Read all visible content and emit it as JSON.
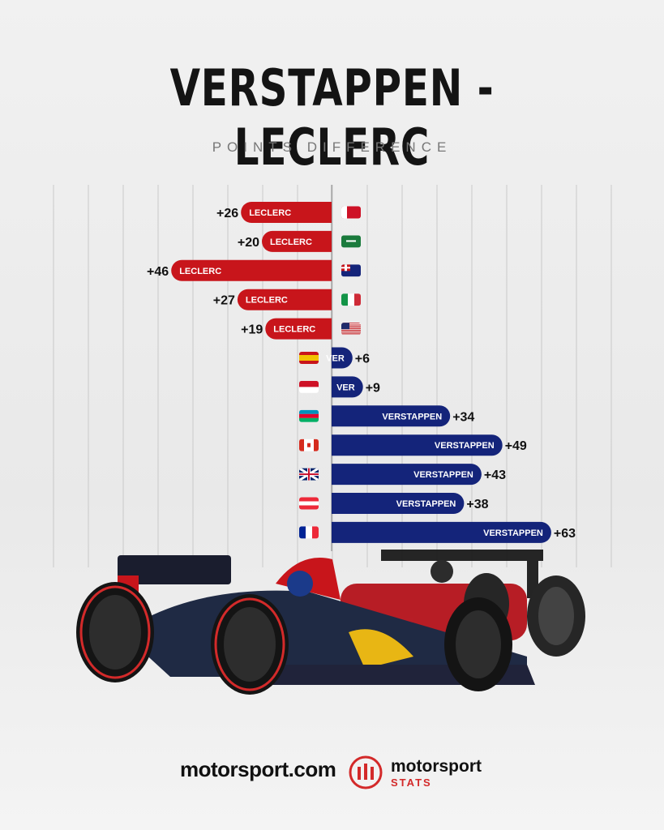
{
  "header": {
    "title": "VERSTAPPEN - LECLERC",
    "subtitle": "POINTS DIFFERENCE"
  },
  "colors": {
    "leclerc": "#c8151b",
    "verstappen": "#14247a",
    "grid": "#c9c9c9"
  },
  "chart_data": {
    "type": "bar",
    "orientation": "horizontal-diverging",
    "categories": [
      "Bahrain",
      "Saudi Arabia",
      "Australia",
      "Italy",
      "USA",
      "Spain",
      "Monaco",
      "Azerbaijan",
      "Canada",
      "Great Britain",
      "Austria",
      "France"
    ],
    "flag_icons": [
      "bahrain-flag-icon",
      "saudi-arabia-flag-icon",
      "australia-flag-icon",
      "italy-flag-icon",
      "usa-flag-icon",
      "spain-flag-icon",
      "monaco-flag-icon",
      "azerbaijan-flag-icon",
      "canada-flag-icon",
      "great-britain-flag-icon",
      "austria-flag-icon",
      "france-flag-icon"
    ],
    "values": [
      -26,
      -20,
      -46,
      -27,
      -19,
      6,
      9,
      34,
      49,
      43,
      38,
      63
    ],
    "bar_labels": [
      "LECLERC",
      "LECLERC",
      "LECLERC",
      "LECLERC",
      "LECLERC",
      "VER",
      "VER",
      "VERSTAPPEN",
      "VERSTAPPEN",
      "VERSTAPPEN",
      "VERSTAPPEN",
      "VERSTAPPEN"
    ],
    "value_labels": [
      "+26",
      "+20",
      "+46",
      "+27",
      "+19",
      "+6",
      "+9",
      "+34",
      "+49",
      "+43",
      "+38",
      "+63"
    ],
    "xlim": [
      -80,
      80
    ],
    "grid": true,
    "title": "VERSTAPPEN - LECLERC",
    "subtitle": "POINTS DIFFERENCE"
  },
  "logos": {
    "left": "motorsport.com",
    "right_main": "motorsport",
    "right_sub": "STATS"
  }
}
